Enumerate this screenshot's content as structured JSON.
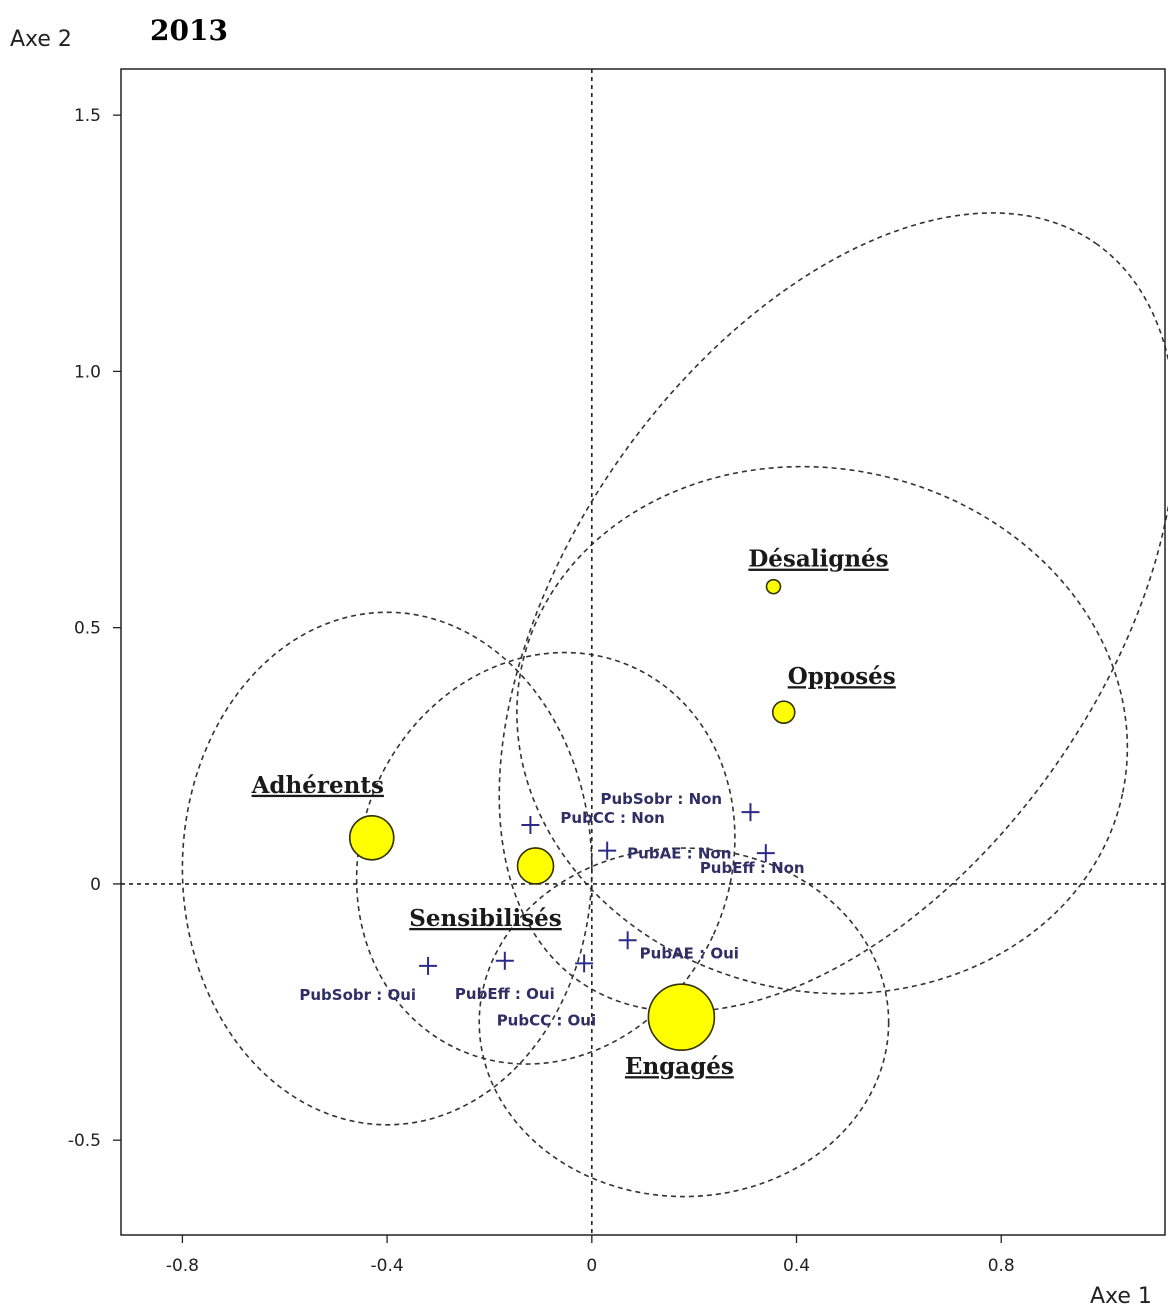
{
  "chart_data": {
    "type": "scatter",
    "title": "2013",
    "xlabel": "Axe 1",
    "ylabel": "Axe 2",
    "xlim": [
      -0.92,
      1.12
    ],
    "ylim": [
      -0.685,
      1.59
    ],
    "xticks": [
      -0.8,
      -0.4,
      0,
      0.4,
      0.8
    ],
    "xtick_labels": [
      "-0.8",
      "-0.4",
      "0",
      "0.4",
      "0.8"
    ],
    "yticks": [
      -0.5,
      0,
      0.5,
      1.0,
      1.5
    ],
    "ytick_labels": [
      "-0.5",
      "0",
      "0.5",
      "1.0",
      "1.5"
    ],
    "grid": false,
    "reference_lines": {
      "x": 0,
      "y": 0
    },
    "clusters": [
      {
        "name": "Adhérents",
        "x": -0.43,
        "y": 0.09,
        "size": "large"
      },
      {
        "name": "Sensibilisés",
        "x": -0.11,
        "y": 0.035,
        "size": "medium"
      },
      {
        "name": "Désalignés",
        "x": 0.355,
        "y": 0.58,
        "size": "small"
      },
      {
        "name": "Opposés",
        "x": 0.375,
        "y": 0.335,
        "size": "medium-small"
      },
      {
        "name": "Engagés",
        "x": 0.175,
        "y": -0.26,
        "size": "largest"
      }
    ],
    "ellipses": [
      {
        "cluster": "Adhérents",
        "cx": -0.4,
        "cy": 0.03,
        "rx": 0.4,
        "ry": 0.5,
        "rotation_deg": 0
      },
      {
        "cluster": "Sensibilisés",
        "cx": -0.09,
        "cy": 0.05,
        "rx": 0.36,
        "ry": 0.41,
        "rotation_deg": 25
      },
      {
        "cluster": "Désalignés",
        "cx": 0.48,
        "cy": 0.53,
        "rx": 0.88,
        "ry": 0.52,
        "rotation_deg": -55
      },
      {
        "cluster": "Opposés",
        "cx": 0.45,
        "cy": 0.3,
        "rx": 0.6,
        "ry": 0.51,
        "rotation_deg": 12
      },
      {
        "cluster": "Engagés",
        "cx": 0.18,
        "cy": -0.27,
        "rx": 0.4,
        "ry": 0.34,
        "rotation_deg": 0
      }
    ],
    "modalities": [
      {
        "label": "PubSobr : Non",
        "x": 0.31,
        "y": 0.14
      },
      {
        "label": "PubCC : Non",
        "x": -0.12,
        "y": 0.115
      },
      {
        "label": "PubEff : Non",
        "x": 0.34,
        "y": 0.06
      },
      {
        "label": "PubAE : Non",
        "x": 0.03,
        "y": 0.065
      },
      {
        "label": "PubAE : Oui",
        "x": 0.07,
        "y": -0.11
      },
      {
        "label": "PubSobr : Oui",
        "x": -0.32,
        "y": -0.16
      },
      {
        "label": "PubEff : Oui",
        "x": -0.17,
        "y": -0.15
      },
      {
        "label": "PubCC : Oui",
        "x": -0.015,
        "y": -0.155
      }
    ]
  },
  "colors": {
    "point_fill": "#ffff00",
    "point_stroke": "#333300",
    "modality": "#2b2b8a",
    "modality_text": "#2f2f66",
    "ellipse": "#333333",
    "axis": "#222222"
  }
}
